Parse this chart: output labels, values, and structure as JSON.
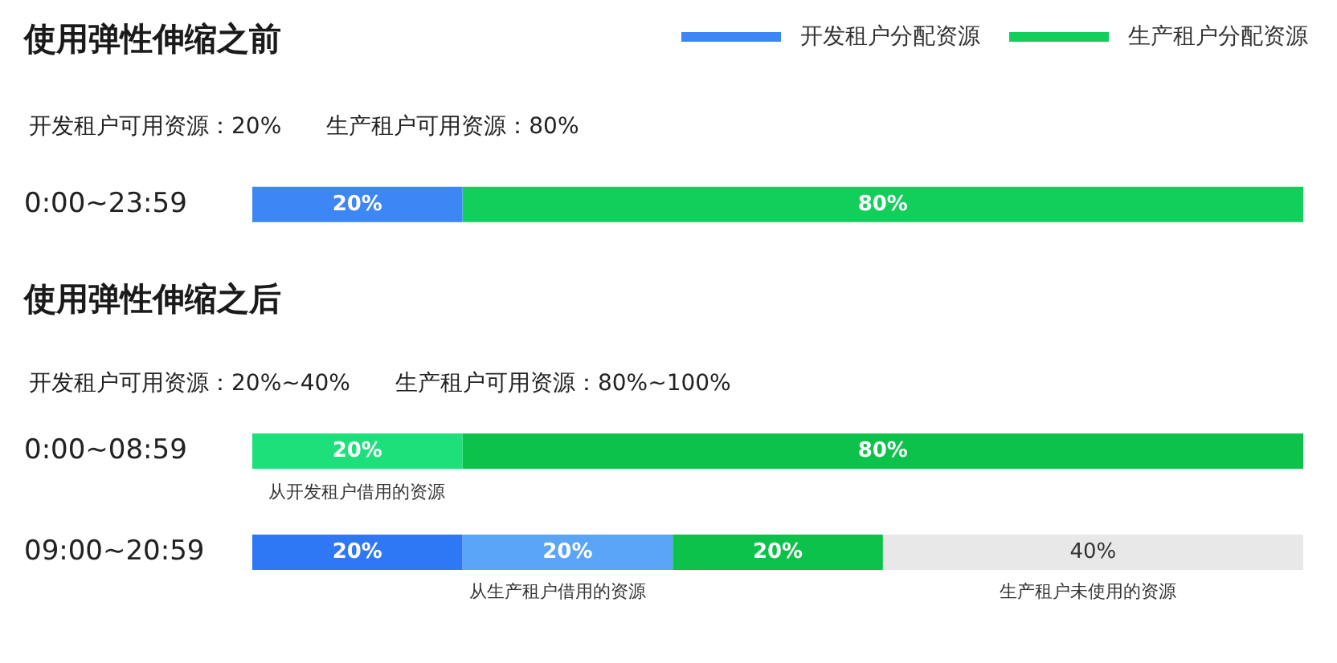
{
  "chart_data": [
    {
      "type": "bar",
      "orientation": "horizontal",
      "stacked": true,
      "title": "使用弹性伸缩之前",
      "categories": [
        "0:00~23:59"
      ],
      "xlim": [
        0,
        100
      ],
      "tick_labels": "y",
      "grid": false,
      "legend": "top right",
      "series": [
        {
          "name": "开发租户分配资源",
          "color": "#3d86f6",
          "values": [
            20
          ],
          "value_labels": [
            "20%"
          ]
        },
        {
          "name": "生产租户分配资源",
          "color": "#12cf5c",
          "values": [
            80
          ],
          "value_labels": [
            "80%"
          ]
        }
      ],
      "annotations": [
        "开发租户可用资源：20%",
        "生产租户可用资源：80%"
      ]
    },
    {
      "type": "bar",
      "orientation": "horizontal",
      "stacked": true,
      "title": "使用弹性伸缩之后",
      "categories": [
        "0:00~08:59",
        "09:00~20:59"
      ],
      "xlim": [
        0,
        100
      ],
      "tick_labels": "y",
      "grid": false,
      "legend": false,
      "series": [
        {
          "colors": [
            "#1de07a",
            "#2f78f5"
          ],
          "values": [
            20,
            20
          ],
          "value_labels": [
            "20%",
            "20%"
          ]
        },
        {
          "colors": [
            "#0cc24a",
            "#5aa5f7"
          ],
          "values": [
            80,
            20
          ],
          "value_labels": [
            "80%",
            "20%"
          ]
        },
        {
          "colors": [
            "#0cc24a",
            "#0cc24a"
          ],
          "values": [
            null,
            20
          ],
          "value_labels": [
            null,
            "20%"
          ]
        },
        {
          "colors": [
            "#e8e8e8",
            "#e8e8e8"
          ],
          "values": [
            null,
            40
          ],
          "value_labels": [
            null,
            "40%"
          ]
        }
      ],
      "annotations": [
        "开发租户可用资源：20%~40%",
        "生产租户可用资源：80%~100%",
        "从开发租户借用的资源",
        "从生产租户借用的资源",
        "生产租户未使用的资源"
      ]
    }
  ]
}
